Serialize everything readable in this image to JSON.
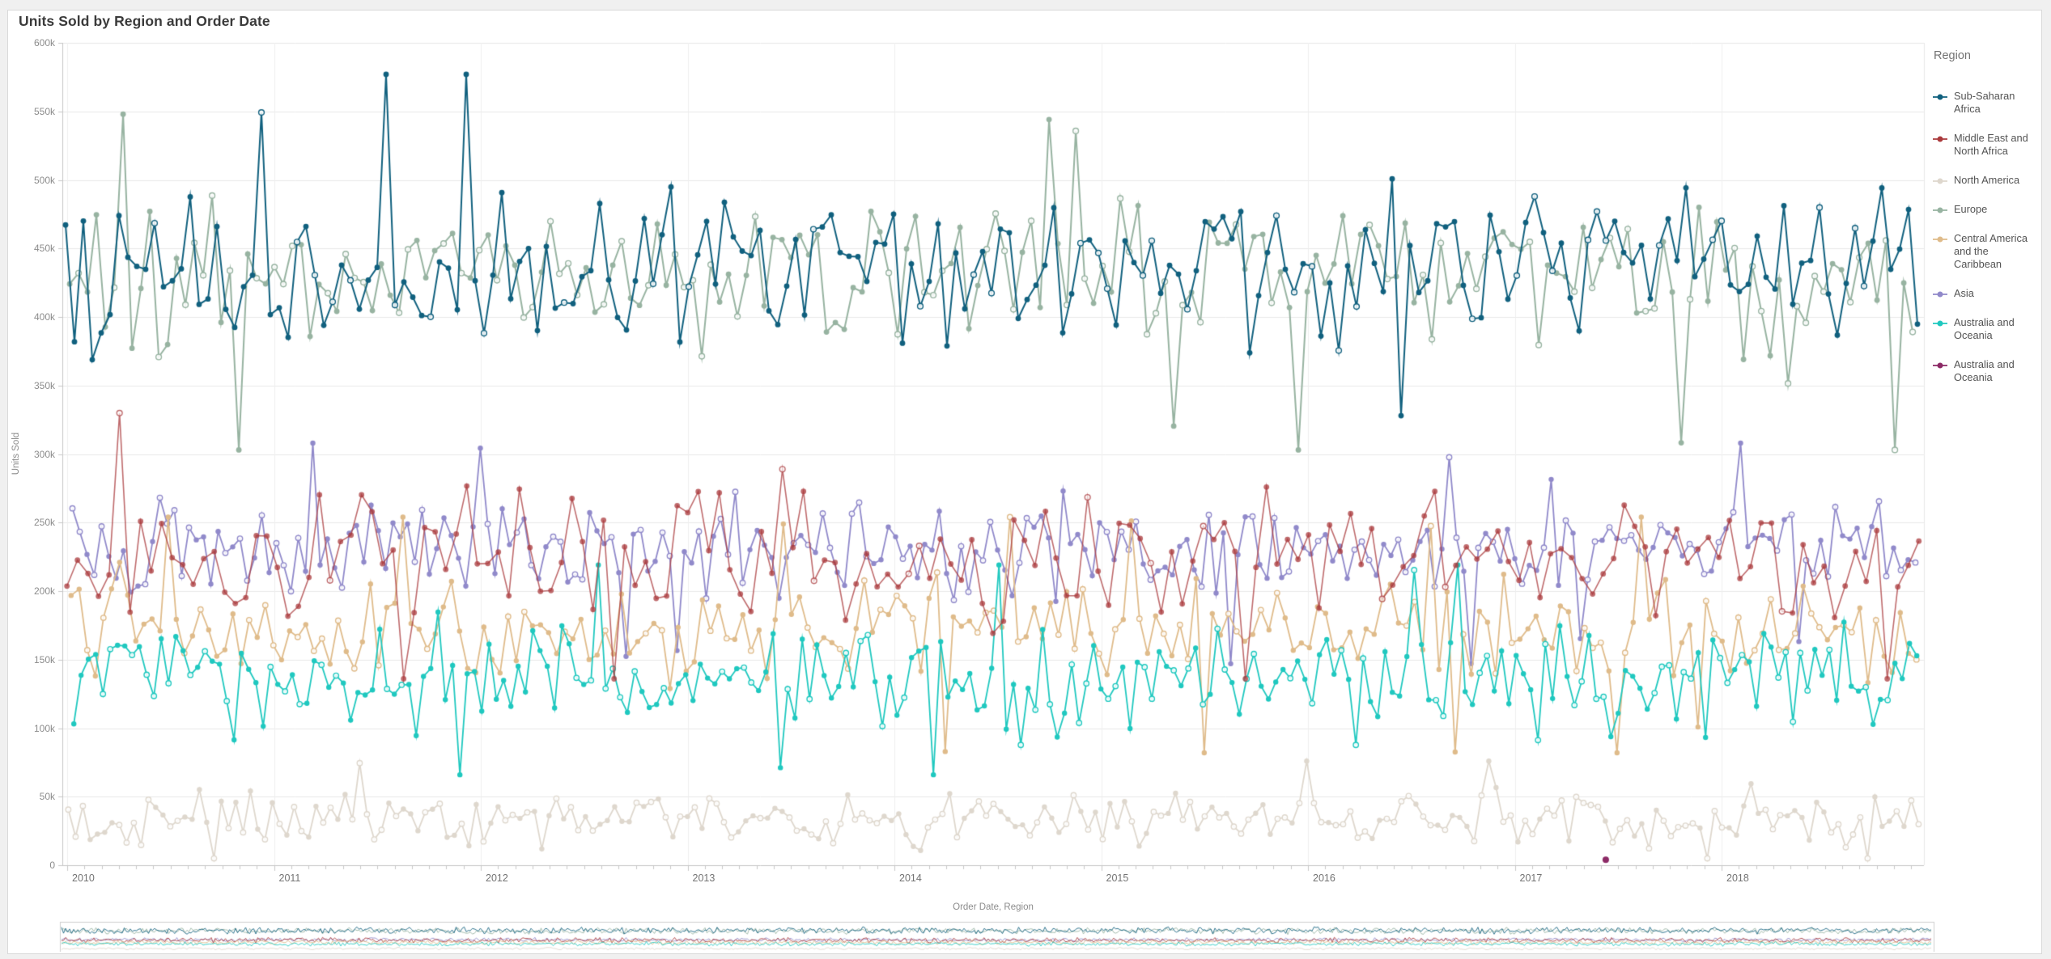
{
  "card": {
    "title": "Units Sold by Region and Order Date"
  },
  "chart_data": {
    "type": "line",
    "title": "Units Sold by Region and Order Date",
    "xlabel": "Order Date, Region",
    "ylabel": "Units Sold",
    "legend_title": "Region",
    "legend_position": "right",
    "grid": true,
    "x_ticks": [
      "2010",
      "2011",
      "2012",
      "2013",
      "2014",
      "2015",
      "2016",
      "2017",
      "2018"
    ],
    "x_minor_ticks": "monthly",
    "y_ticks": [
      "0",
      "50k",
      "100k",
      "150k",
      "200k",
      "250k",
      "300k",
      "350k",
      "400k",
      "450k",
      "500k",
      "550k",
      "600k"
    ],
    "ylim": [
      0,
      600000
    ],
    "x_domain": [
      "2010-01",
      "2018-12"
    ],
    "description": "Dense daily line series with point markers; values read from band extents on the y axis",
    "series": [
      {
        "name": "Sub-Saharan Africa",
        "color": "#10607e",
        "marker": "dot",
        "approx_mean": 441000,
        "approx_spread": 45000,
        "approx_min": 328000,
        "approx_max": 577000
      },
      {
        "name": "Middle East and North Africa",
        "color": "#aa3a3c",
        "marker": "dot",
        "approx_mean": 222000,
        "approx_spread": 36000,
        "approx_min": 136000,
        "approx_max": 345000
      },
      {
        "name": "North America",
        "color": "#ded7cd",
        "marker": "dot",
        "approx_mean": 34000,
        "approx_spread": 16000,
        "approx_min": 5000,
        "approx_max": 76000
      },
      {
        "name": "Europe",
        "color": "#97b3a1",
        "marker": "dot",
        "approx_mean": 432000,
        "approx_spread": 42000,
        "approx_min": 303000,
        "approx_max": 548000
      },
      {
        "name": "Central America and the Caribbean",
        "color": "#dfbb8a",
        "marker": "dot",
        "approx_mean": 172000,
        "approx_spread": 30000,
        "approx_min": 82000,
        "approx_max": 254000
      },
      {
        "name": "Asia",
        "color": "#9089ca",
        "marker": "dot",
        "approx_mean": 232000,
        "approx_spread": 28000,
        "approx_min": 147000,
        "approx_max": 308000
      },
      {
        "name": "Australia and Oceania",
        "color": "#1fc8bf",
        "marker": "dot",
        "approx_mean": 138000,
        "approx_spread": 28000,
        "approx_min": 66000,
        "approx_max": 219000
      },
      {
        "name": "Australia and Oceania",
        "color": "#8c2a66",
        "marker": "dot",
        "approx_mean": 4000,
        "approx_spread": 0,
        "approx_min": 4000,
        "approx_max": 4000,
        "note": "single point near zero"
      }
    ],
    "outlier_point": {
      "series_index": 7,
      "years_after_2010": 7.44,
      "value": 4000
    },
    "navigator": {
      "present": true,
      "shows": "full date range overview of all series"
    }
  }
}
